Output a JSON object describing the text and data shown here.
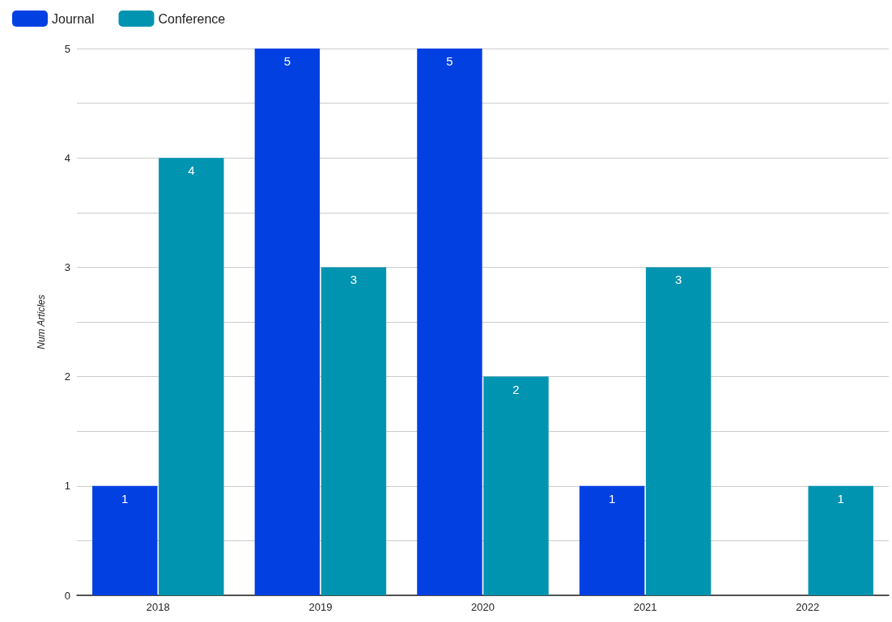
{
  "chart_data": {
    "type": "bar",
    "ylabel": "Num Articles",
    "categories": [
      "2018",
      "2019",
      "2020",
      "2021",
      "2022"
    ],
    "series": [
      {
        "name": "Journal",
        "color": "#0340e2",
        "values": [
          1,
          5,
          5,
          1,
          null
        ]
      },
      {
        "name": "Conference",
        "color": "#0094b0",
        "values": [
          4,
          3,
          2,
          3,
          1
        ]
      }
    ],
    "ylim": [
      0,
      5
    ],
    "yticks": [
      0,
      {
        "value": 0.5,
        "label": null
      },
      1,
      {
        "value": 1.5,
        "label": null
      },
      2,
      {
        "value": 2.5,
        "label": null
      },
      3,
      {
        "value": 3.5,
        "label": null
      },
      4,
      {
        "value": 4.5,
        "label": null
      },
      5
    ],
    "grid": "y",
    "legend": "top left",
    "data_labels": true
  }
}
